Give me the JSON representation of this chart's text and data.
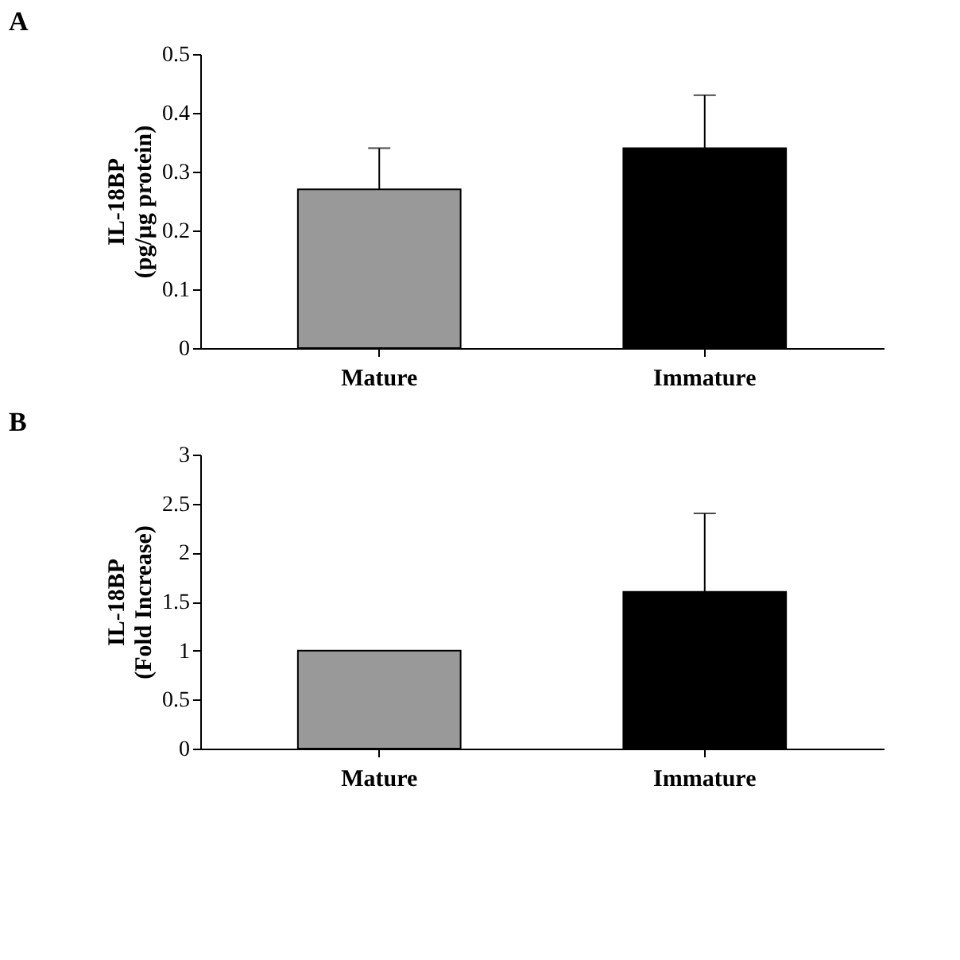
{
  "chart_data": [
    {
      "type": "bar",
      "title": "A",
      "ylabel": "IL-18BP\n(pg/μg protein)",
      "categories": [
        "Mature",
        "Immature"
      ],
      "colors": [
        "#999999",
        "#000000"
      ],
      "values": [
        0.27,
        0.34
      ],
      "errors": [
        [
          0.27,
          0.34
        ],
        [
          0.34,
          0.43
        ]
      ],
      "ylim": [
        0,
        0.5
      ],
      "yticks": [
        0,
        0.1,
        0.2,
        0.3,
        0.4,
        0.5
      ],
      "grid": false
    },
    {
      "type": "bar",
      "title": "B",
      "ylabel": "IL-18BP\n(Fold Increase)",
      "categories": [
        "Mature",
        "Immature"
      ],
      "colors": [
        "#999999",
        "#000000"
      ],
      "values": [
        1.0,
        1.6
      ],
      "errors": [
        null,
        [
          1.6,
          2.4
        ]
      ],
      "ylim": [
        0,
        3
      ],
      "yticks": [
        0,
        0.5,
        1,
        1.5,
        2,
        2.5,
        3
      ],
      "grid": false
    }
  ]
}
